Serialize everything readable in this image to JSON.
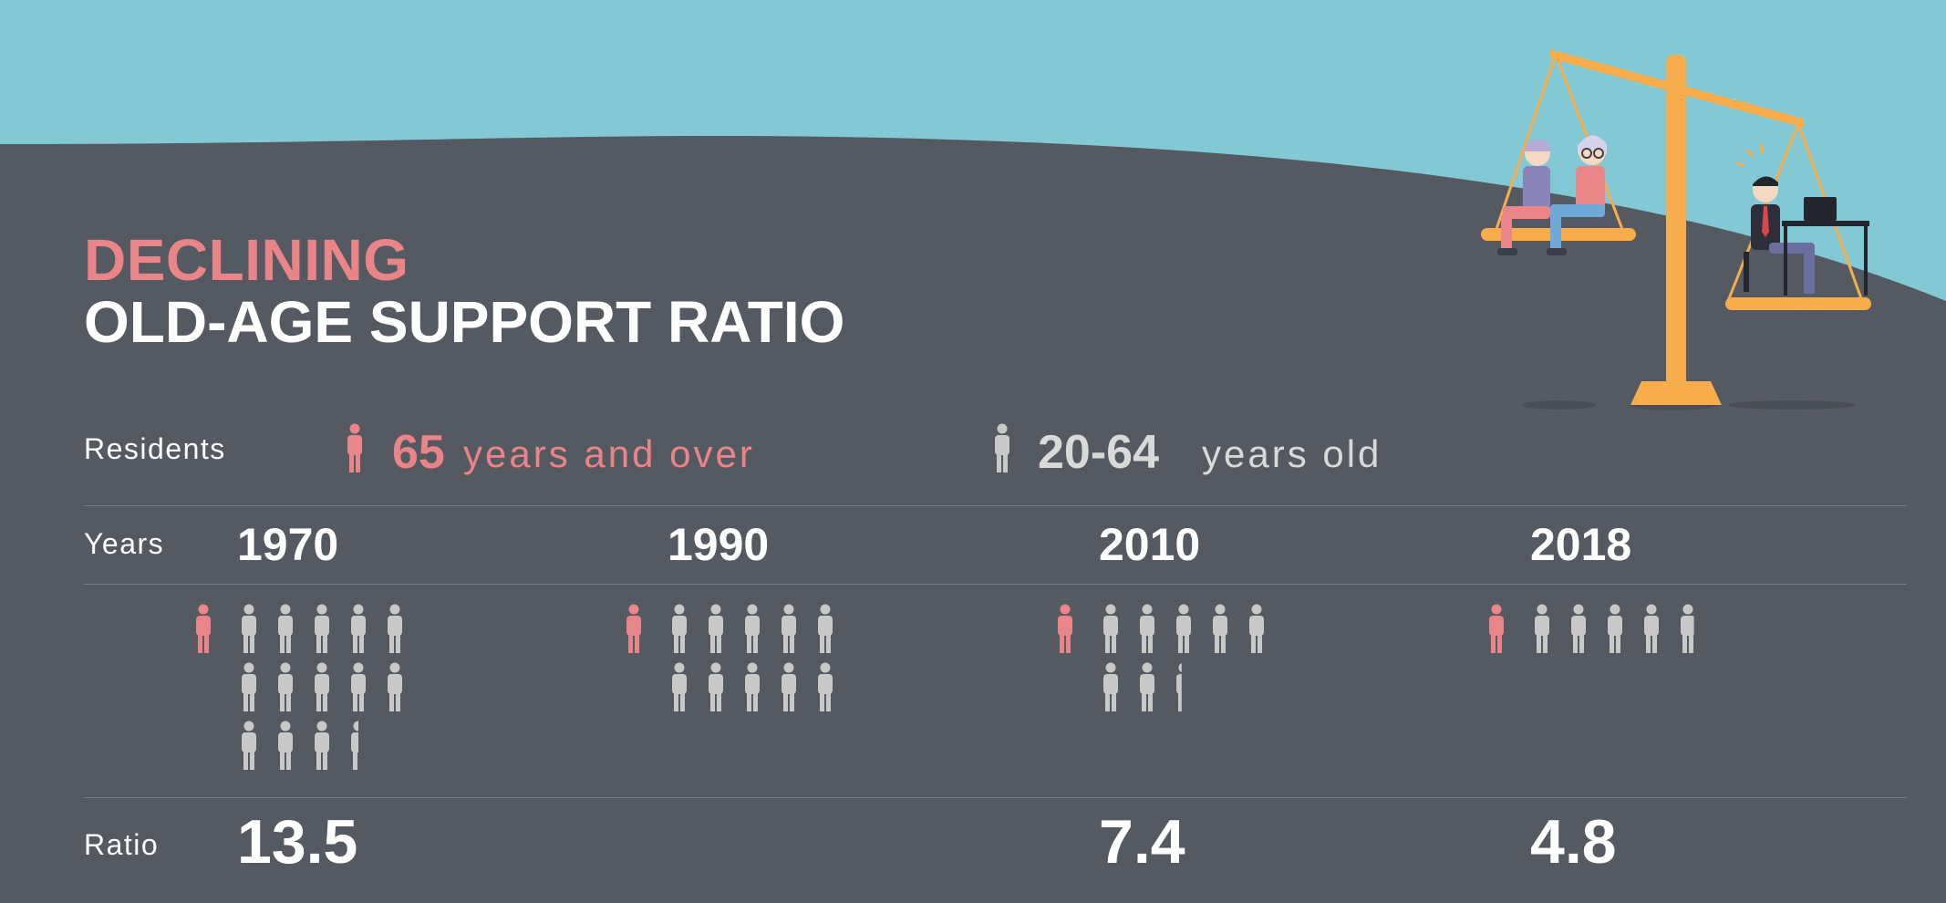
{
  "title": {
    "line1": "DECLINING",
    "line2": "OLD-AGE SUPPORT RATIO"
  },
  "legend": {
    "row_label": "Residents",
    "elderly": {
      "number": "65",
      "text": "years and over",
      "color": "#e98489",
      "icon": "person-icon"
    },
    "working": {
      "number": "20-64",
      "text": "years old",
      "color": "#c8c8c8",
      "icon": "person-icon"
    }
  },
  "row_labels": {
    "years": "Years",
    "ratio": "Ratio"
  },
  "colors": {
    "background": "#555962",
    "sky": "#83c8d5",
    "elderly": "#e98489",
    "working": "#c8c8c8",
    "scale": "#f7ad4c"
  },
  "chart_data": {
    "type": "pictogram",
    "unit": "one elderly resident (65 and over) vs. residents aged 20-64",
    "categories": [
      "1970",
      "1990",
      "2010",
      "2018"
    ],
    "series": [
      {
        "name": "65 years and over",
        "values": [
          1,
          1,
          1,
          1
        ]
      },
      {
        "name": "20-64 years old",
        "values": [
          13.5,
          10.1,
          7.4,
          4.8
        ]
      }
    ],
    "ratio_labels": [
      "13.5",
      "",
      "7.4",
      "4.8"
    ]
  }
}
